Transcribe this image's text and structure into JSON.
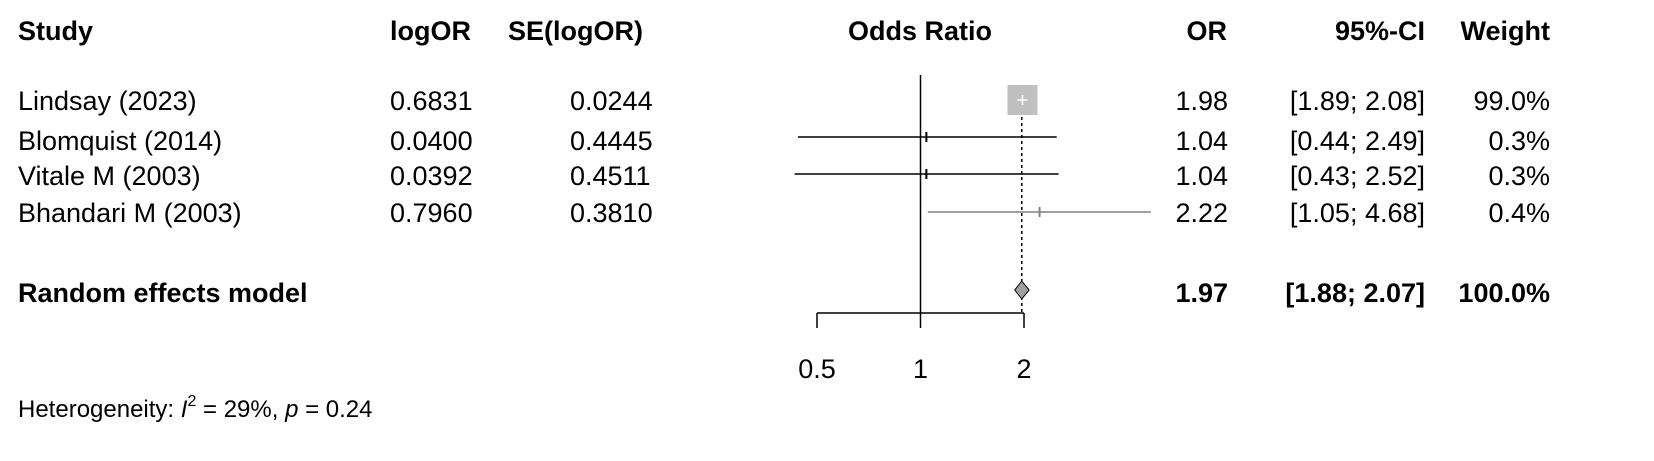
{
  "headers": {
    "study": "Study",
    "logor": "logOR",
    "se": "SE(logOR)",
    "plot": "Odds Ratio",
    "or": "OR",
    "ci": "95%-CI",
    "weight": "Weight"
  },
  "studies": [
    {
      "study": "Lindsay (2023)",
      "logor": "0.6831",
      "se": "0.0244",
      "or": "1.98",
      "ci": "[1.89; 2.08]",
      "weight": "99.0%"
    },
    {
      "study": "Blomquist (2014)",
      "logor": "0.0400",
      "se": "0.4445",
      "or": "1.04",
      "ci": "[0.44; 2.49]",
      "weight": "0.3%"
    },
    {
      "study": "Vitale M (2003)",
      "logor": "0.0392",
      "se": "0.4511",
      "or": "1.04",
      "ci": "[0.43; 2.52]",
      "weight": "0.3%"
    },
    {
      "study": "Bhandari M (2003)",
      "logor": "0.7960",
      "se": "0.3810",
      "or": "2.22",
      "ci": "[1.05; 4.68]",
      "weight": "0.4%"
    }
  ],
  "summary": {
    "study": "Random effects model",
    "or": "1.97",
    "ci": "[1.88; 2.07]",
    "weight": "100.0%"
  },
  "heterogeneity": {
    "label": "Heterogeneity: ",
    "i2_symbol": "I",
    "i2_sup": "2",
    "i2_value": " = 29%, ",
    "p_symbol": "p",
    "p_value": " = 0.24"
  },
  "chart_data": {
    "type": "forest",
    "scale": "log",
    "x_ticks": [
      0.5,
      1,
      2
    ],
    "x_tick_labels": [
      "0.5",
      "1",
      "2"
    ],
    "xlim": [
      0.5,
      2.03
    ],
    "reference_line": 1,
    "pooled_line": 1.97,
    "points": [
      {
        "study": "Lindsay (2023)",
        "or": 1.98,
        "lower": 1.89,
        "upper": 2.08,
        "weight": 99.0
      },
      {
        "study": "Blomquist (2014)",
        "or": 1.04,
        "lower": 0.44,
        "upper": 2.49,
        "weight": 0.3
      },
      {
        "study": "Vitale M (2003)",
        "or": 1.04,
        "lower": 0.43,
        "upper": 2.52,
        "weight": 0.3
      },
      {
        "study": "Bhandari M (2003)",
        "or": 2.22,
        "lower": 1.05,
        "upper": 4.68,
        "weight": 0.4
      }
    ],
    "pooled": {
      "or": 1.97,
      "lower": 1.88,
      "upper": 2.07
    },
    "colors": {
      "box": "#c0c0c0",
      "line": "#808080",
      "text": "#000000"
    }
  }
}
